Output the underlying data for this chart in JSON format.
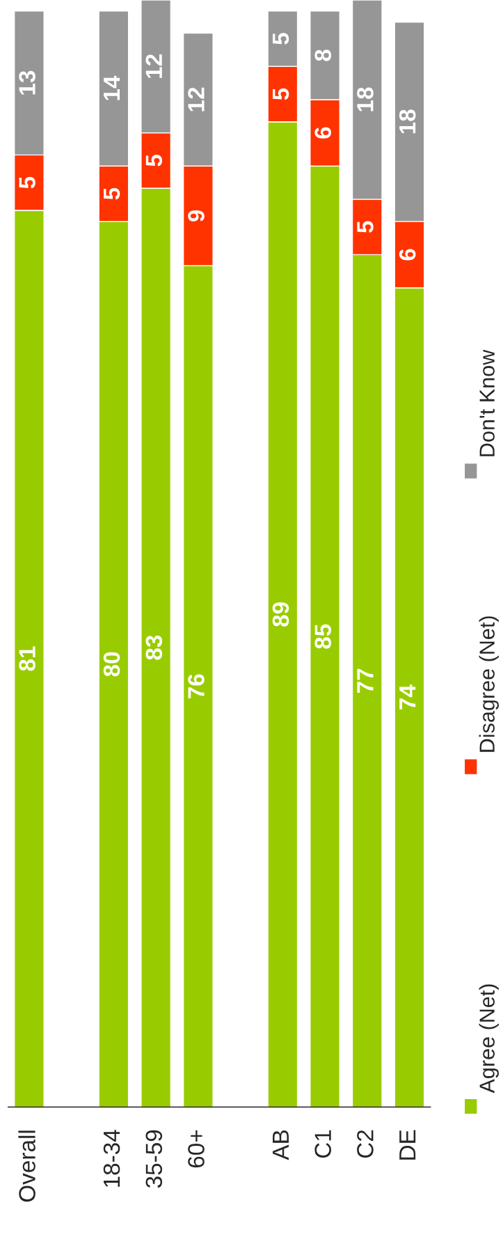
{
  "chart_data": {
    "type": "bar",
    "stacked": true,
    "data_labels": true,
    "legend": "bottom",
    "categories": [
      "Overall",
      null,
      "18-34",
      "35-59",
      "60+",
      null,
      "AB",
      "C1",
      "C2",
      "DE"
    ],
    "series": [
      {
        "name": "Agree (Net)",
        "color": "#99cc00",
        "values": [
          81,
          null,
          80,
          83,
          76,
          null,
          89,
          85,
          77,
          74
        ]
      },
      {
        "name": "Disagree (Net)",
        "color": "#ff3300",
        "values": [
          5,
          null,
          5,
          5,
          9,
          null,
          5,
          6,
          5,
          6
        ]
      },
      {
        "name": "Don't Know",
        "color": "#969696",
        "values": [
          13,
          null,
          14,
          12,
          12,
          null,
          5,
          8,
          18,
          18
        ]
      }
    ]
  }
}
